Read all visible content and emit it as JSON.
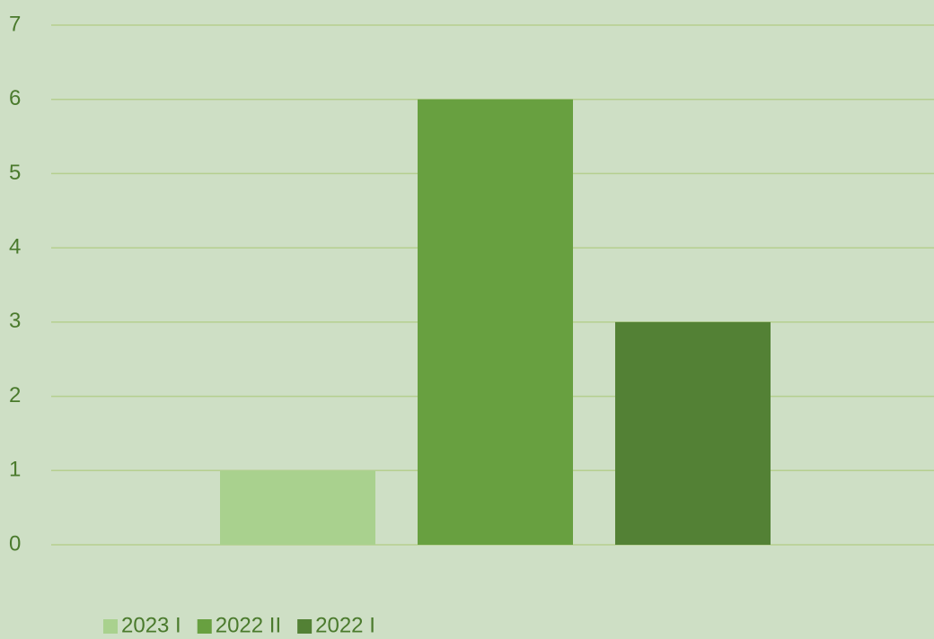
{
  "chart_data": {
    "type": "bar",
    "categories": [
      null
    ],
    "series": [
      {
        "name": "2023 I",
        "color": "#a9d18e",
        "values": [
          1
        ]
      },
      {
        "name": "2022 II",
        "color": "#68a040",
        "values": [
          6
        ]
      },
      {
        "name": "2022 I",
        "color": "#538135",
        "values": [
          3
        ]
      }
    ],
    "ylim": [
      0,
      7
    ],
    "yticks": [
      0,
      1,
      2,
      3,
      4,
      5,
      6,
      7
    ],
    "grid": true,
    "legend": "bottom"
  }
}
